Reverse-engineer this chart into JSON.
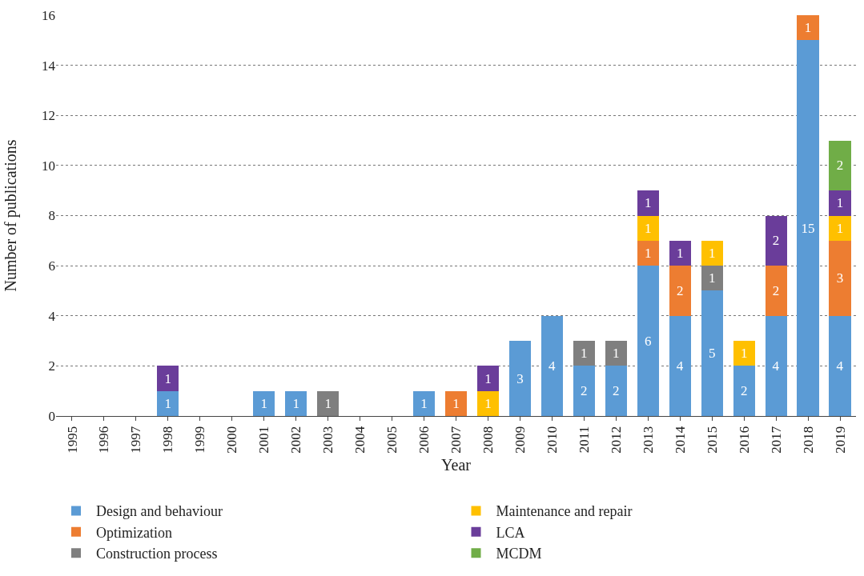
{
  "chart_data": {
    "type": "bar",
    "stacked": true,
    "xlabel": "Year",
    "ylabel": "Number of publications",
    "categories": [
      "1995",
      "1996",
      "1997",
      "1998",
      "1999",
      "2000",
      "2001",
      "2002",
      "2003",
      "2004",
      "2005",
      "2006",
      "2007",
      "2008",
      "2009",
      "2010",
      "2011",
      "2012",
      "2013",
      "2014",
      "2015",
      "2016",
      "2017",
      "2018",
      "2019"
    ],
    "series": [
      {
        "name": "Design and behaviour",
        "color": "#5b9bd5",
        "values": [
          null,
          null,
          null,
          1,
          null,
          null,
          1,
          1,
          null,
          null,
          null,
          1,
          null,
          null,
          3,
          4,
          2,
          2,
          6,
          4,
          5,
          2,
          4,
          15,
          4
        ]
      },
      {
        "name": "Optimization",
        "color": "#ed7d31",
        "values": [
          null,
          null,
          null,
          null,
          null,
          null,
          null,
          null,
          null,
          null,
          null,
          null,
          1,
          null,
          null,
          null,
          null,
          null,
          1,
          2,
          null,
          null,
          2,
          1,
          3
        ]
      },
      {
        "name": "Construction process",
        "color": "#7f7f7f",
        "values": [
          null,
          null,
          null,
          null,
          null,
          null,
          null,
          null,
          1,
          null,
          null,
          null,
          null,
          null,
          null,
          null,
          1,
          1,
          null,
          null,
          1,
          null,
          null,
          null,
          null
        ]
      },
      {
        "name": "Maintenance and repair",
        "color": "#ffc000",
        "values": [
          null,
          null,
          null,
          null,
          null,
          null,
          null,
          null,
          null,
          null,
          null,
          null,
          null,
          1,
          null,
          null,
          null,
          null,
          1,
          null,
          1,
          1,
          null,
          null,
          1
        ]
      },
      {
        "name": "LCA",
        "color": "#6a3d9a",
        "values": [
          null,
          null,
          null,
          1,
          null,
          null,
          null,
          null,
          null,
          null,
          null,
          null,
          null,
          1,
          null,
          null,
          null,
          null,
          1,
          1,
          null,
          null,
          2,
          null,
          1
        ]
      },
      {
        "name": "MCDM",
        "color": "#70ad47",
        "values": [
          null,
          null,
          null,
          null,
          null,
          null,
          null,
          null,
          null,
          null,
          null,
          null,
          null,
          null,
          null,
          null,
          null,
          null,
          null,
          null,
          null,
          null,
          null,
          null,
          2
        ]
      }
    ],
    "ylim": [
      0,
      16
    ],
    "yticks": [
      0,
      2,
      4,
      6,
      8,
      10,
      12,
      14,
      16
    ],
    "grid": "y",
    "legend": "bottom",
    "data_labels": true
  }
}
